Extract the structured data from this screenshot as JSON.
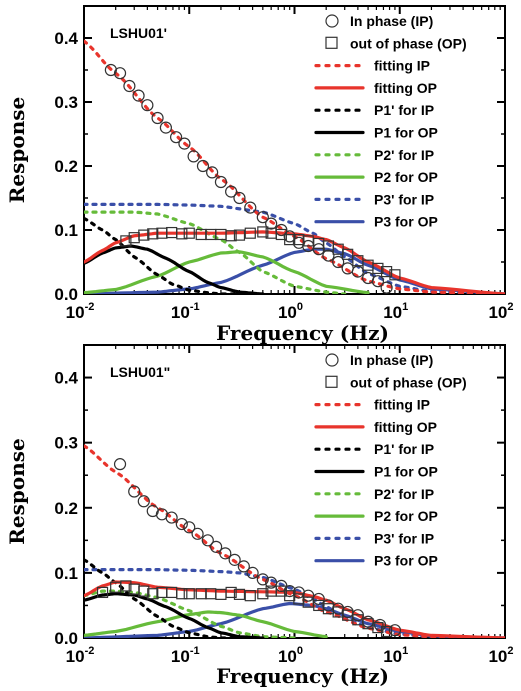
{
  "chart_data": [
    {
      "type": "line",
      "title": "LSHU01'",
      "xlabel": "Frequency (Hz)",
      "ylabel": "Response",
      "x_scale": "log",
      "xlim": [
        0.01,
        100
      ],
      "ylim": [
        0,
        0.45
      ],
      "x_ticks": [
        {
          "base": "10",
          "exp": "-2"
        },
        {
          "base": "10",
          "exp": "-1"
        },
        {
          "base": "10",
          "exp": "0"
        },
        {
          "base": "10",
          "exp": "1"
        },
        {
          "base": "10",
          "exp": "2"
        }
      ],
      "y_ticks": [
        "0.0",
        "0.1",
        "0.2",
        "0.3",
        "0.4"
      ],
      "y_tick_values": [
        0,
        0.1,
        0.2,
        0.3,
        0.4
      ],
      "legend_position": "top-right",
      "legend": [
        {
          "label": "In phase (IP)",
          "kind": "circle"
        },
        {
          "label": "out of phase (OP)",
          "kind": "square"
        },
        {
          "label": "fitting IP",
          "kind": "dotted",
          "color": "#e8342c"
        },
        {
          "label": "fitting OP",
          "kind": "solid",
          "color": "#e8342c"
        },
        {
          "label": "P1' for IP",
          "kind": "dotted",
          "color": "#000000"
        },
        {
          "label": "P1 for OP",
          "kind": "solid",
          "color": "#000000"
        },
        {
          "label": "P2' for IP",
          "kind": "dotted",
          "color": "#66bb3a"
        },
        {
          "label": "P2 for OP",
          "kind": "solid",
          "color": "#66bb3a"
        },
        {
          "label": "P3' for IP",
          "kind": "dotted",
          "color": "#3a4fa8"
        },
        {
          "label": "P3 for OP",
          "kind": "solid",
          "color": "#3a4fa8"
        }
      ],
      "ip_points": {
        "x": [
          0.018,
          0.022,
          0.027,
          0.033,
          0.04,
          0.05,
          0.06,
          0.075,
          0.09,
          0.11,
          0.135,
          0.165,
          0.2,
          0.25,
          0.3,
          0.38,
          0.5,
          0.6,
          0.75,
          0.9,
          1.1,
          1.35,
          1.7,
          2.1,
          2.6,
          3.2,
          4.0,
          5.0,
          6.2,
          7.5
        ],
        "y": [
          0.35,
          0.345,
          0.325,
          0.31,
          0.295,
          0.275,
          0.26,
          0.245,
          0.235,
          0.215,
          0.2,
          0.19,
          0.175,
          0.16,
          0.15,
          0.135,
          0.12,
          0.11,
          0.1,
          0.09,
          0.08,
          0.075,
          0.07,
          0.06,
          0.05,
          0.04,
          0.035,
          0.025,
          0.02,
          0.01
        ]
      },
      "op_points": {
        "x": [
          0.025,
          0.03,
          0.037,
          0.045,
          0.055,
          0.068,
          0.085,
          0.1,
          0.13,
          0.16,
          0.2,
          0.25,
          0.3,
          0.38,
          0.5,
          0.6,
          0.75,
          0.9,
          1.1,
          1.35,
          1.7,
          2.1,
          2.6,
          3.2,
          4.0,
          5.0,
          6.2,
          7.5,
          9.0
        ],
        "y": [
          0.083,
          0.088,
          0.092,
          0.094,
          0.095,
          0.096,
          0.094,
          0.095,
          0.093,
          0.093,
          0.093,
          0.091,
          0.092,
          0.095,
          0.097,
          0.095,
          0.093,
          0.085,
          0.085,
          0.083,
          0.079,
          0.075,
          0.07,
          0.062,
          0.052,
          0.045,
          0.04,
          0.035,
          0.03
        ]
      },
      "series": [
        {
          "name": "fitting IP",
          "style": "dotted",
          "color": "#e8342c",
          "x": [
            0.01,
            0.02,
            0.05,
            0.1,
            0.2,
            0.5,
            1,
            2,
            5,
            10,
            20,
            100
          ],
          "y": [
            0.395,
            0.345,
            0.275,
            0.23,
            0.18,
            0.12,
            0.09,
            0.055,
            0.02,
            0.008,
            0.003,
            0.0
          ]
        },
        {
          "name": "fitting OP",
          "style": "solid",
          "color": "#e8342c",
          "x": [
            0.01,
            0.015,
            0.02,
            0.03,
            0.05,
            0.1,
            0.2,
            0.5,
            1,
            1.5,
            2,
            3,
            5,
            10,
            20,
            100
          ],
          "y": [
            0.05,
            0.068,
            0.08,
            0.091,
            0.095,
            0.095,
            0.095,
            0.097,
            0.094,
            0.09,
            0.085,
            0.072,
            0.05,
            0.025,
            0.01,
            0.0
          ]
        },
        {
          "name": "P1' for IP",
          "style": "dotted",
          "color": "#000000",
          "x": [
            0.01,
            0.015,
            0.02,
            0.03,
            0.05,
            0.07,
            0.1,
            0.15,
            0.2,
            0.3
          ],
          "y": [
            0.118,
            0.1,
            0.085,
            0.058,
            0.03,
            0.015,
            0.006,
            0.002,
            0.0,
            0.0
          ]
        },
        {
          "name": "P1 for OP",
          "style": "solid",
          "color": "#000000",
          "x": [
            0.01,
            0.015,
            0.02,
            0.028,
            0.04,
            0.06,
            0.1,
            0.15,
            0.2,
            0.3,
            0.5
          ],
          "y": [
            0.048,
            0.064,
            0.072,
            0.075,
            0.07,
            0.056,
            0.035,
            0.018,
            0.01,
            0.003,
            0.0
          ]
        },
        {
          "name": "P2' for IP",
          "style": "dotted",
          "color": "#66bb3a",
          "x": [
            0.01,
            0.03,
            0.05,
            0.1,
            0.2,
            0.3,
            0.5,
            1,
            2,
            3
          ],
          "y": [
            0.128,
            0.128,
            0.125,
            0.11,
            0.085,
            0.065,
            0.035,
            0.012,
            0.003,
            0.0
          ]
        },
        {
          "name": "P2 for OP",
          "style": "solid",
          "color": "#66bb3a",
          "x": [
            0.01,
            0.02,
            0.05,
            0.1,
            0.2,
            0.3,
            0.5,
            1,
            2,
            5
          ],
          "y": [
            0.002,
            0.007,
            0.028,
            0.05,
            0.064,
            0.066,
            0.058,
            0.035,
            0.012,
            0.002
          ]
        },
        {
          "name": "P3' for IP",
          "style": "dotted",
          "color": "#3a4fa8",
          "x": [
            0.01,
            0.05,
            0.1,
            0.2,
            0.5,
            1,
            1.5,
            2,
            3,
            5,
            10,
            20,
            100
          ],
          "y": [
            0.14,
            0.14,
            0.139,
            0.137,
            0.128,
            0.11,
            0.095,
            0.08,
            0.058,
            0.032,
            0.012,
            0.004,
            0.0
          ]
        },
        {
          "name": "P3 for OP",
          "style": "solid",
          "color": "#3a4fa8",
          "x": [
            0.01,
            0.05,
            0.1,
            0.2,
            0.5,
            1,
            1.5,
            2,
            3,
            5,
            10,
            20,
            100
          ],
          "y": [
            0.0,
            0.003,
            0.008,
            0.018,
            0.045,
            0.065,
            0.07,
            0.07,
            0.063,
            0.045,
            0.022,
            0.008,
            0.0
          ]
        }
      ]
    },
    {
      "type": "line",
      "title": "LSHU01\"",
      "xlabel": "Frequency (Hz)",
      "ylabel": "Response",
      "x_scale": "log",
      "xlim": [
        0.01,
        100
      ],
      "ylim": [
        0,
        0.45
      ],
      "x_ticks": [
        {
          "base": "10",
          "exp": "-2"
        },
        {
          "base": "10",
          "exp": "-1"
        },
        {
          "base": "10",
          "exp": "0"
        },
        {
          "base": "10",
          "exp": "1"
        },
        {
          "base": "10",
          "exp": "2"
        }
      ],
      "y_ticks": [
        "0.0",
        "0.1",
        "0.2",
        "0.3",
        "0.4"
      ],
      "y_tick_values": [
        0,
        0.1,
        0.2,
        0.3,
        0.4
      ],
      "legend_position": "top-right",
      "legend": [
        {
          "label": "In phase (IP)",
          "kind": "circle"
        },
        {
          "label": "out of phase (OP)",
          "kind": "square"
        },
        {
          "label": "fitting IP",
          "kind": "dotted",
          "color": "#e8342c"
        },
        {
          "label": "fitting OP",
          "kind": "solid",
          "color": "#e8342c"
        },
        {
          "label": "P1' for IP",
          "kind": "dotted",
          "color": "#000000"
        },
        {
          "label": "P1 for OP",
          "kind": "solid",
          "color": "#000000"
        },
        {
          "label": "P2' for IP",
          "kind": "dotted",
          "color": "#66bb3a"
        },
        {
          "label": "P2 for OP",
          "kind": "solid",
          "color": "#66bb3a"
        },
        {
          "label": "P3' for IP",
          "kind": "dotted",
          "color": "#3a4fa8"
        },
        {
          "label": "P3 for OP",
          "kind": "solid",
          "color": "#3a4fa8"
        }
      ],
      "ip_points": {
        "x": [
          0.022,
          0.03,
          0.037,
          0.045,
          0.055,
          0.068,
          0.085,
          0.1,
          0.12,
          0.15,
          0.18,
          0.22,
          0.27,
          0.33,
          0.4,
          0.5,
          0.6,
          0.75,
          0.9,
          1.1,
          1.35,
          1.7,
          2.1,
          2.6,
          3.2,
          4.0,
          5.0,
          6.5,
          9.0
        ],
        "y": [
          0.267,
          0.225,
          0.21,
          0.195,
          0.19,
          0.185,
          0.175,
          0.17,
          0.16,
          0.15,
          0.14,
          0.13,
          0.12,
          0.11,
          0.1,
          0.09,
          0.085,
          0.08,
          0.072,
          0.07,
          0.065,
          0.06,
          0.05,
          0.045,
          0.04,
          0.035,
          0.025,
          0.02,
          0.012
        ]
      },
      "op_points": {
        "x": [
          0.015,
          0.02,
          0.025,
          0.03,
          0.037,
          0.045,
          0.055,
          0.068,
          0.085,
          0.1,
          0.13,
          0.16,
          0.2,
          0.25,
          0.3,
          0.38,
          0.5,
          0.6,
          0.75,
          0.9,
          1.1,
          1.35,
          1.7,
          2.1,
          2.6,
          3.2,
          4.0,
          5.0,
          6.2,
          7.5
        ],
        "y": [
          0.07,
          0.078,
          0.08,
          0.075,
          0.072,
          0.068,
          0.07,
          0.07,
          0.068,
          0.068,
          0.068,
          0.068,
          0.067,
          0.07,
          0.067,
          0.065,
          0.068,
          0.072,
          0.072,
          0.065,
          0.06,
          0.055,
          0.05,
          0.045,
          0.04,
          0.035,
          0.028,
          0.022,
          0.016,
          0.01
        ]
      },
      "series": [
        {
          "name": "fitting IP",
          "style": "dotted",
          "color": "#e8342c",
          "x": [
            0.01,
            0.02,
            0.05,
            0.1,
            0.2,
            0.5,
            1,
            2,
            5,
            10,
            20,
            100
          ],
          "y": [
            0.295,
            0.255,
            0.2,
            0.165,
            0.13,
            0.09,
            0.065,
            0.04,
            0.015,
            0.005,
            0.002,
            0.0
          ]
        },
        {
          "name": "fitting OP",
          "style": "solid",
          "color": "#e8342c",
          "x": [
            0.01,
            0.015,
            0.02,
            0.03,
            0.05,
            0.1,
            0.2,
            0.5,
            1,
            1.5,
            2,
            3,
            5,
            10,
            20,
            100
          ],
          "y": [
            0.065,
            0.08,
            0.086,
            0.085,
            0.078,
            0.074,
            0.072,
            0.071,
            0.07,
            0.064,
            0.058,
            0.045,
            0.028,
            0.012,
            0.004,
            0.0
          ]
        },
        {
          "name": "P1' for IP",
          "style": "dotted",
          "color": "#000000",
          "x": [
            0.01,
            0.015,
            0.02,
            0.03,
            0.05,
            0.07,
            0.1,
            0.15,
            0.2,
            0.3
          ],
          "y": [
            0.12,
            0.1,
            0.085,
            0.06,
            0.033,
            0.018,
            0.008,
            0.002,
            0.0,
            0.0
          ]
        },
        {
          "name": "P1 for OP",
          "style": "solid",
          "color": "#000000",
          "x": [
            0.01,
            0.015,
            0.02,
            0.03,
            0.04,
            0.06,
            0.1,
            0.15,
            0.2,
            0.3,
            0.5
          ],
          "y": [
            0.058,
            0.066,
            0.068,
            0.066,
            0.06,
            0.048,
            0.03,
            0.016,
            0.008,
            0.002,
            0.0
          ]
        },
        {
          "name": "P2' for IP",
          "style": "dotted",
          "color": "#66bb3a",
          "x": [
            0.01,
            0.015,
            0.02,
            0.03,
            0.05,
            0.1,
            0.2,
            0.3,
            0.5,
            1
          ],
          "y": [
            0.065,
            0.072,
            0.072,
            0.07,
            0.062,
            0.042,
            0.018,
            0.008,
            0.002,
            0.0
          ]
        },
        {
          "name": "P2 for OP",
          "style": "solid",
          "color": "#66bb3a",
          "x": [
            0.01,
            0.02,
            0.05,
            0.1,
            0.15,
            0.2,
            0.3,
            0.5,
            1,
            2
          ],
          "y": [
            0.004,
            0.01,
            0.025,
            0.036,
            0.04,
            0.039,
            0.035,
            0.025,
            0.01,
            0.002
          ]
        },
        {
          "name": "P3' for IP",
          "style": "dotted",
          "color": "#3a4fa8",
          "x": [
            0.01,
            0.05,
            0.1,
            0.2,
            0.3,
            0.5,
            1,
            1.5,
            2,
            3,
            5,
            10,
            20,
            100
          ],
          "y": [
            0.105,
            0.105,
            0.104,
            0.102,
            0.1,
            0.093,
            0.075,
            0.06,
            0.048,
            0.032,
            0.016,
            0.006,
            0.002,
            0.0
          ]
        },
        {
          "name": "P3 for OP",
          "style": "solid",
          "color": "#3a4fa8",
          "x": [
            0.01,
            0.05,
            0.1,
            0.2,
            0.5,
            0.9,
            1.5,
            2,
            3,
            5,
            10,
            20,
            100
          ],
          "y": [
            0.0,
            0.004,
            0.01,
            0.022,
            0.045,
            0.053,
            0.05,
            0.045,
            0.035,
            0.022,
            0.01,
            0.003,
            0.0
          ]
        }
      ]
    }
  ]
}
